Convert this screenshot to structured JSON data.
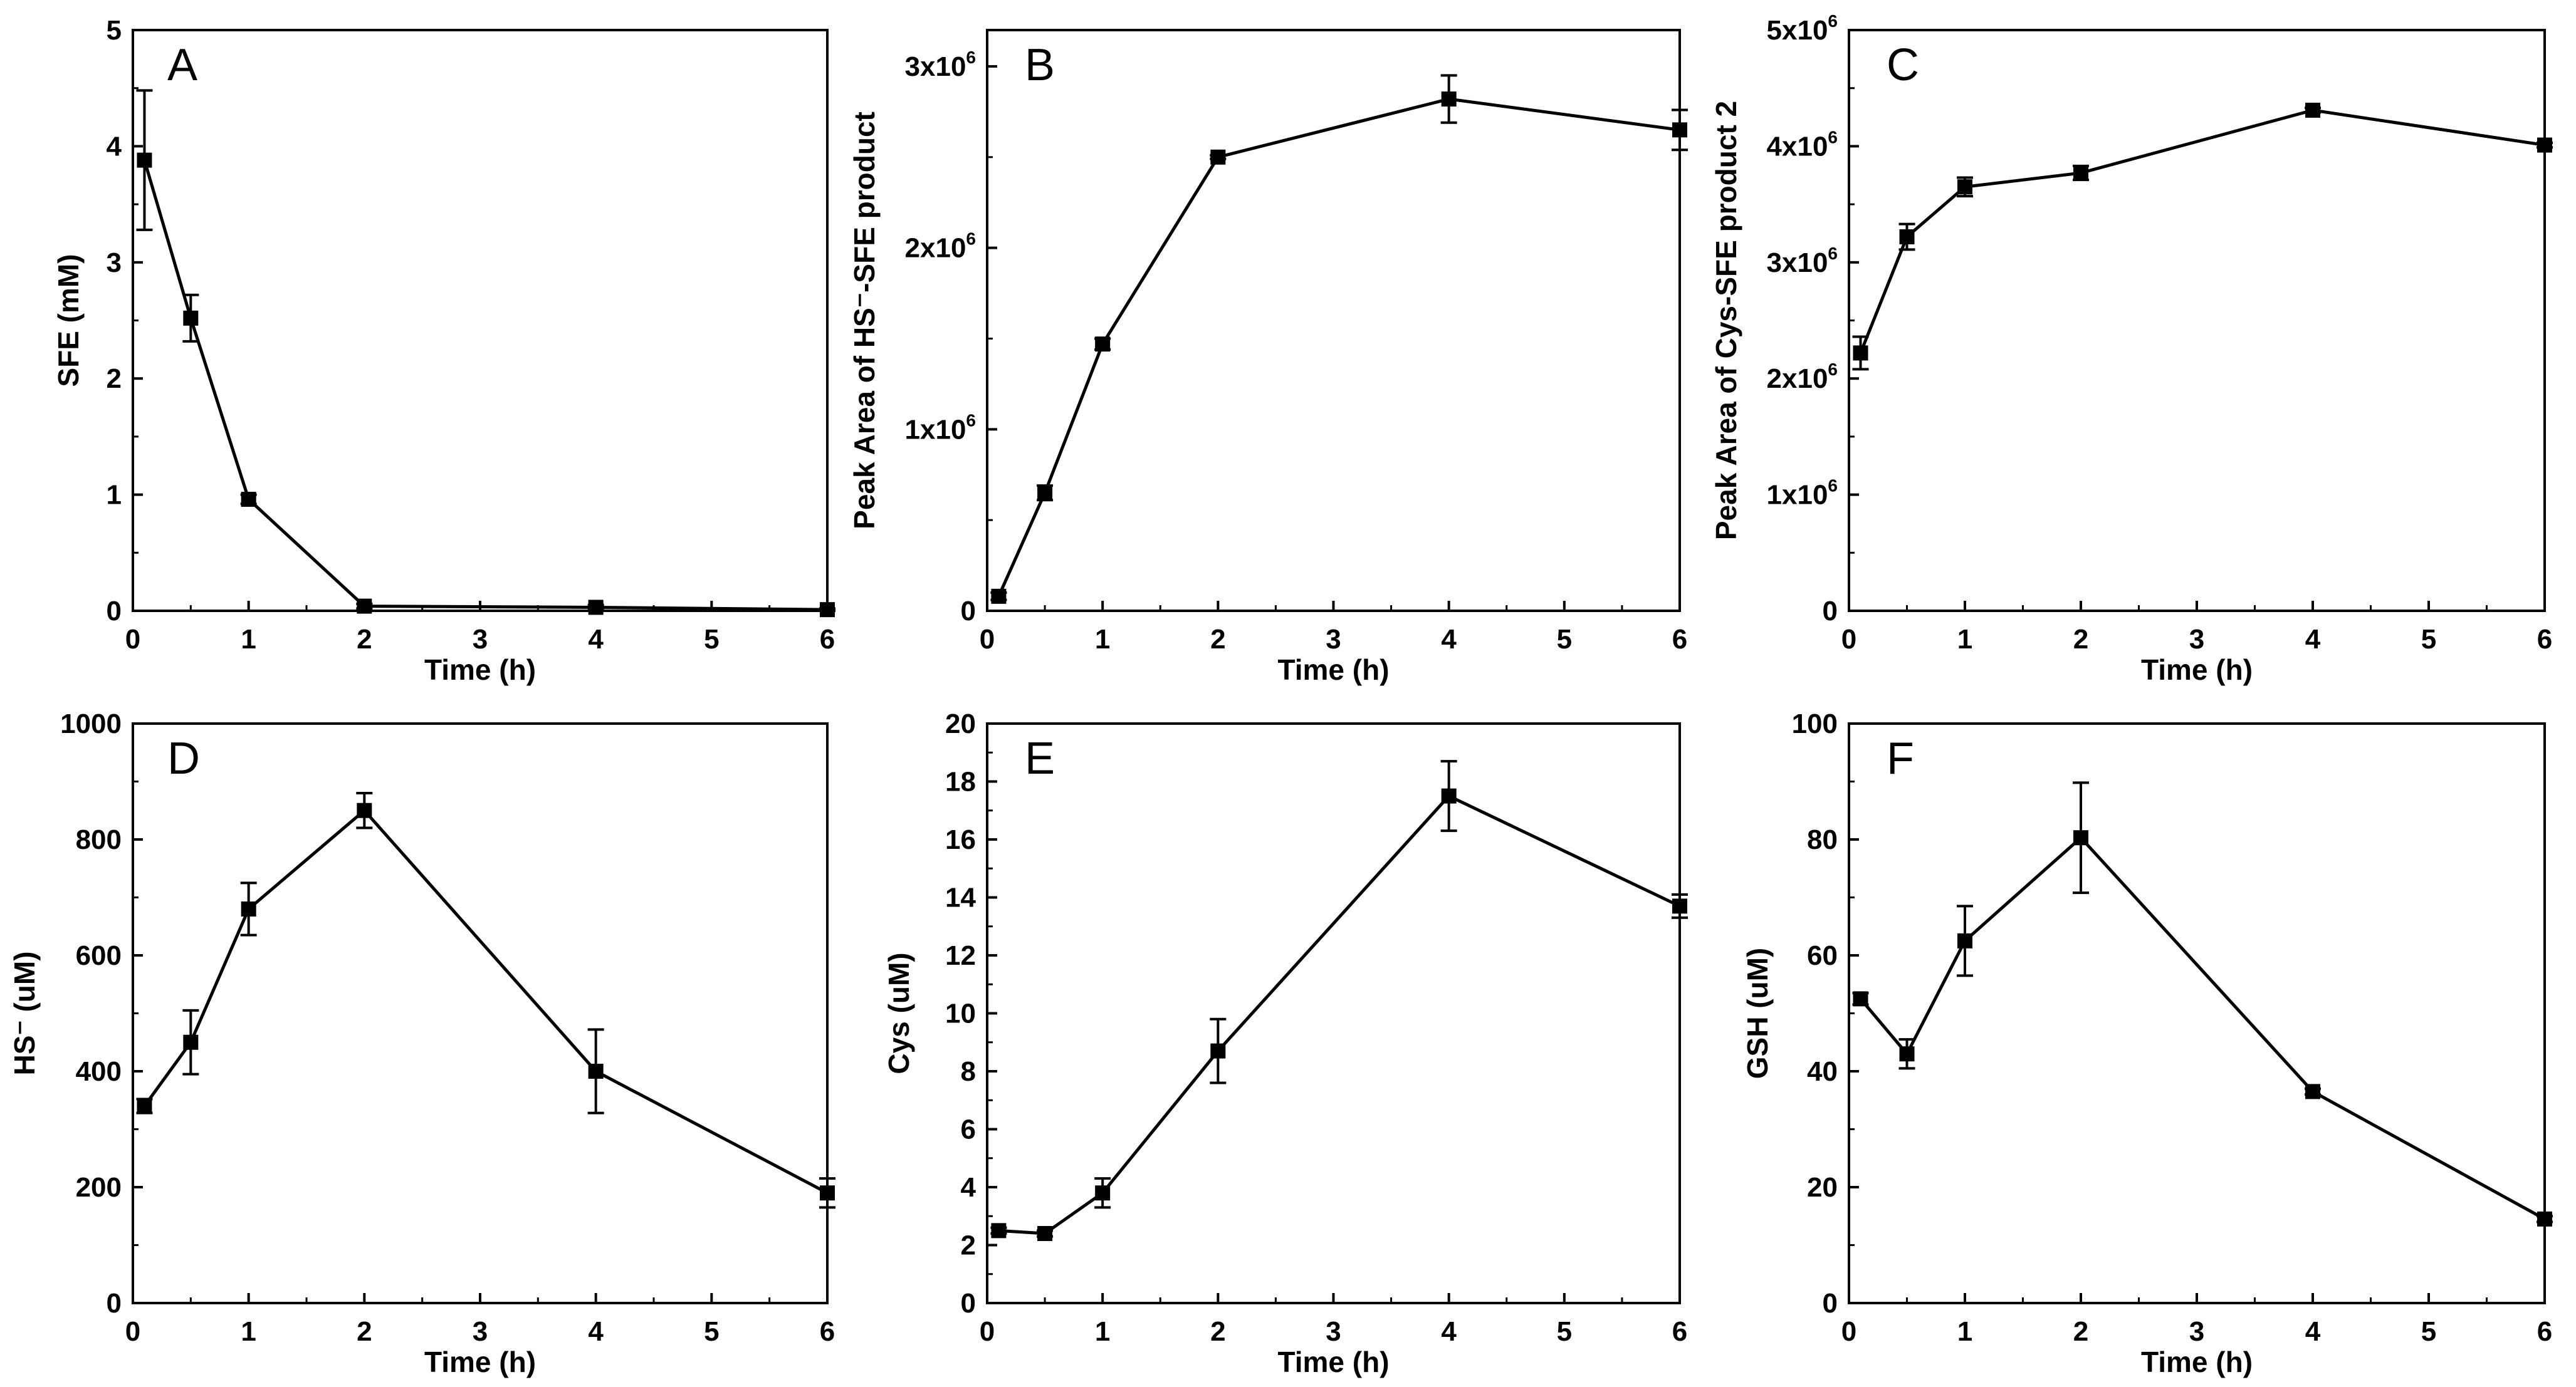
{
  "chart_data": [
    {
      "id": "A",
      "type": "line",
      "panel_label": "A",
      "xlabel": "Time (h)",
      "ylabel": "SFE (mM)",
      "xlim": [
        0,
        6
      ],
      "ylim": [
        0,
        5
      ],
      "xticks": [
        "0",
        "1",
        "2",
        "3",
        "4",
        "5",
        "6"
      ],
      "yticks": [
        "0",
        "1",
        "2",
        "3",
        "4",
        "5"
      ],
      "x": [
        0.1,
        0.5,
        1,
        2,
        4,
        6
      ],
      "values": [
        3.88,
        2.52,
        0.96,
        0.04,
        0.03,
        0.01
      ],
      "errors": [
        0.6,
        0.2,
        0.04,
        0.02,
        0.02,
        0.01
      ]
    },
    {
      "id": "B",
      "type": "line",
      "panel_label": "B",
      "xlabel": "Time (h)",
      "ylabel": "Peak Area of HS⁻-SFE product",
      "xlim": [
        0,
        6
      ],
      "ylim": [
        0,
        3200000
      ],
      "xticks": [
        "0",
        "1",
        "2",
        "3",
        "4",
        "5",
        "6"
      ],
      "ytick_values": [
        0,
        1000000,
        2000000,
        3000000
      ],
      "ytick_text": [
        "0",
        "1x10",
        "2x10",
        "3x10"
      ],
      "ytick_exp": [
        "",
        "6",
        "6",
        "6"
      ],
      "x": [
        0.1,
        0.5,
        1,
        2,
        4,
        6
      ],
      "values": [
        80000,
        650000,
        1470000,
        2500000,
        2820000,
        2650000
      ],
      "errors": [
        20000,
        40000,
        30000,
        10000,
        130000,
        110000
      ]
    },
    {
      "id": "C",
      "type": "line",
      "panel_label": "C",
      "xlabel": "Time (h)",
      "ylabel": "Peak Area of Cys-SFE product 2",
      "xlim": [
        0,
        6
      ],
      "ylim": [
        0,
        5000000
      ],
      "xticks": [
        "0",
        "1",
        "2",
        "3",
        "4",
        "5",
        "6"
      ],
      "ytick_values": [
        0,
        1000000,
        2000000,
        3000000,
        4000000,
        5000000
      ],
      "ytick_text": [
        "0",
        "1x10",
        "2x10",
        "3x10",
        "4x10",
        "5x10"
      ],
      "ytick_exp": [
        "",
        "6",
        "6",
        "6",
        "6",
        "6"
      ],
      "x": [
        0.1,
        0.5,
        1,
        2,
        4,
        6
      ],
      "values": [
        2220000,
        3220000,
        3650000,
        3770000,
        4310000,
        4010000
      ],
      "errors": [
        140000,
        110000,
        80000,
        60000,
        20000,
        20000
      ]
    },
    {
      "id": "D",
      "type": "line",
      "panel_label": "D",
      "xlabel": "Time (h)",
      "ylabel": "HS⁻ (uM)",
      "xlim": [
        0,
        6
      ],
      "ylim": [
        0,
        1000
      ],
      "xticks": [
        "0",
        "1",
        "2",
        "3",
        "4",
        "5",
        "6"
      ],
      "yticks": [
        "0",
        "200",
        "400",
        "600",
        "800",
        "1000"
      ],
      "x": [
        0.1,
        0.5,
        1,
        2,
        4,
        6
      ],
      "values": [
        340,
        450,
        680,
        850,
        400,
        190
      ],
      "errors": [
        12,
        55,
        45,
        30,
        72,
        25
      ]
    },
    {
      "id": "E",
      "type": "line",
      "panel_label": "E",
      "xlabel": "Time (h)",
      "ylabel": "Cys (uM)",
      "xlim": [
        0,
        6
      ],
      "ylim": [
        0,
        20
      ],
      "xticks": [
        "0",
        "1",
        "2",
        "3",
        "4",
        "5",
        "6"
      ],
      "yticks": [
        "0",
        "2",
        "4",
        "6",
        "8",
        "10",
        "12",
        "14",
        "16",
        "18",
        "20"
      ],
      "x": [
        0.1,
        0.5,
        1,
        2,
        4,
        6
      ],
      "values": [
        2.5,
        2.4,
        3.8,
        8.7,
        17.5,
        13.7
      ],
      "errors": [
        0.1,
        0.1,
        0.5,
        1.1,
        1.2,
        0.4
      ]
    },
    {
      "id": "F",
      "type": "line",
      "panel_label": "F",
      "xlabel": "Time (h)",
      "ylabel": "GSH (uM)",
      "xlim": [
        0,
        6
      ],
      "ylim": [
        0,
        100
      ],
      "xticks": [
        "0",
        "1",
        "2",
        "3",
        "4",
        "5",
        "6"
      ],
      "yticks": [
        "0",
        "20",
        "40",
        "60",
        "80",
        "100"
      ],
      "x": [
        0.1,
        0.5,
        1,
        2,
        4,
        6
      ],
      "values": [
        52.5,
        43,
        62.5,
        80.3,
        36.5,
        14.5
      ],
      "errors": [
        1.0,
        2.5,
        6.0,
        9.5,
        0.5,
        0.5
      ]
    }
  ]
}
